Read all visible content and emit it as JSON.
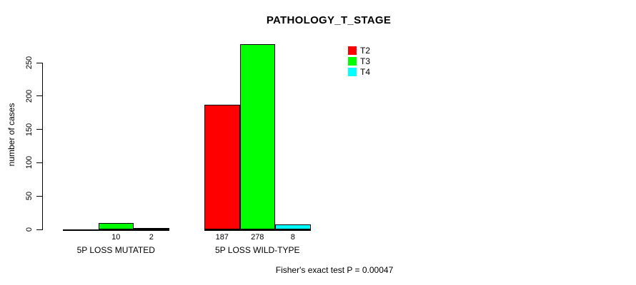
{
  "chart_data": {
    "type": "bar",
    "title": "PATHOLOGY_T_STAGE",
    "ylabel": "number of cases",
    "categories": [
      "5P LOSS MUTATED",
      "5P LOSS WILD-TYPE"
    ],
    "series": [
      {
        "name": "T2",
        "color": "#ff0000",
        "values": [
          0,
          187
        ],
        "labels": [
          "",
          "187"
        ]
      },
      {
        "name": "T3",
        "color": "#00ff00",
        "values": [
          10,
          278
        ],
        "labels": [
          "10",
          "278"
        ]
      },
      {
        "name": "T4",
        "color": "#00ffff",
        "values": [
          2,
          8
        ],
        "labels": [
          "2",
          "8"
        ]
      }
    ],
    "yticks": [
      0,
      50,
      100,
      150,
      200,
      250
    ],
    "ylim": [
      0,
      280
    ],
    "grid": false,
    "legend_position": "top-right",
    "annotation": "Fisher's exact test P = 0.00047"
  }
}
